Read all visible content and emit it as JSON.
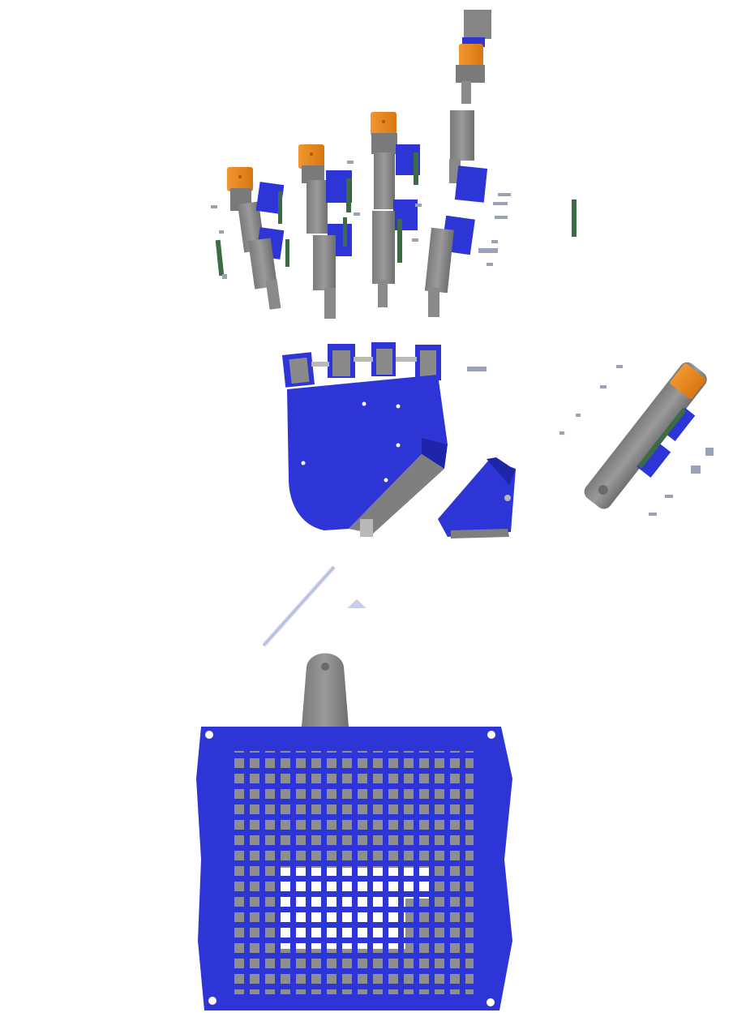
{
  "scene": {
    "description_kind": "exploded-view 3D render, no visible text",
    "colors": {
      "background": "#ffffff",
      "blue_part": "#2e35d6",
      "blue_dark": "#1f25a8",
      "grey_part": "#8c8c8c",
      "grey_dark": "#6a6a6a",
      "grey_light": "#b9b9b9",
      "orange_pad": "#f08a24",
      "orange_dark": "#c46a10",
      "pcb_green": "#3d6b45",
      "screw": "#9aa2b8",
      "rod": "#c9d0ec"
    },
    "icons": {
      "fingers": "finger-assembly-icon",
      "palm": "palm-plate-icon",
      "thumb": "thumb-assembly-icon",
      "base": "forearm-base-icon",
      "fan": "fan-icon"
    }
  }
}
